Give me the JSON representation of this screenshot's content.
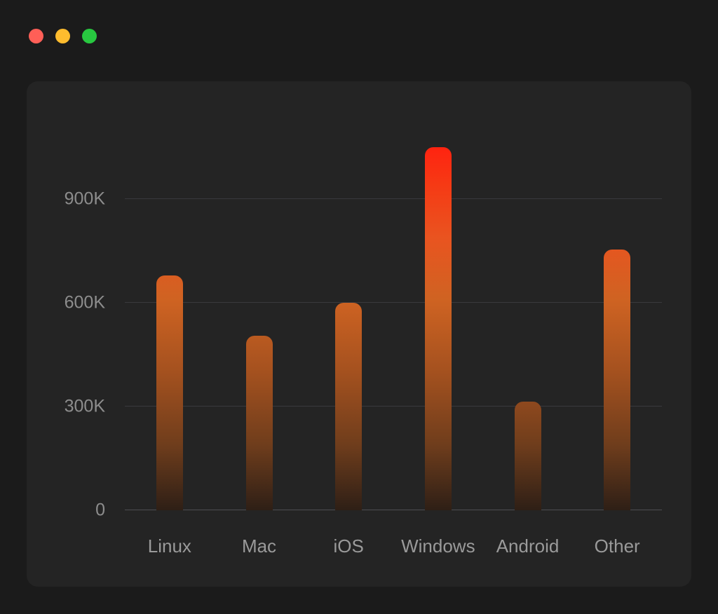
{
  "window": {
    "controls": [
      {
        "name": "close",
        "color": "#ff5f57"
      },
      {
        "name": "minimize",
        "color": "#febc2e"
      },
      {
        "name": "zoom",
        "color": "#28c840"
      }
    ],
    "background": "#1b1b1b",
    "card_background": "#242424"
  },
  "chart_data": {
    "type": "bar",
    "title": "",
    "xlabel": "",
    "ylabel": "",
    "categories": [
      "Linux",
      "Mac",
      "iOS",
      "Windows",
      "Android",
      "Other"
    ],
    "values": [
      680,
      505,
      600,
      1050,
      315,
      755
    ],
    "values_unit": "K",
    "y_ticks": [
      {
        "value": 0,
        "label": "0"
      },
      {
        "value": 300,
        "label": "300K"
      },
      {
        "value": 600,
        "label": "600K"
      },
      {
        "value": 900,
        "label": "900K"
      }
    ],
    "ylim": [
      0,
      1100
    ],
    "grid": true,
    "legend": "none",
    "bar_gradient_stops": [
      {
        "pos": "0%",
        "color": "#2e1f16"
      },
      {
        "pos": "18%",
        "color": "#6f3d1c"
      },
      {
        "pos": "38%",
        "color": "#a4511f"
      },
      {
        "pos": "58%",
        "color": "#cf6322"
      },
      {
        "pos": "75%",
        "color": "#e95420"
      },
      {
        "pos": "90%",
        "color": "#f63914"
      },
      {
        "pos": "100%",
        "color": "#ff2310"
      }
    ],
    "gridline_color": "#39393d",
    "axis_line_color": "#4d4d52",
    "tick_label_color": "#8d8d8d",
    "category_label_color": "#9a9a9a"
  }
}
